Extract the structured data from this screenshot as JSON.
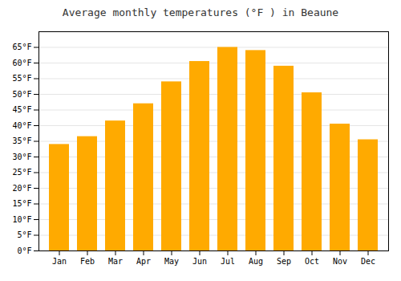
{
  "chart_data": {
    "type": "bar",
    "title": "Average monthly temperatures (°F ) in Beaune",
    "categories": [
      "Jan",
      "Feb",
      "Mar",
      "Apr",
      "May",
      "Jun",
      "Jul",
      "Aug",
      "Sep",
      "Oct",
      "Nov",
      "Dec"
    ],
    "values": [
      34,
      36.5,
      41.5,
      47,
      54,
      60.5,
      65,
      64,
      59,
      50.5,
      40.5,
      35.5
    ],
    "color": "#FFAA00",
    "ylim": [
      0,
      70
    ],
    "yticks": [
      {
        "value": 0,
        "label": "0°F"
      },
      {
        "value": 5,
        "label": "5°F"
      },
      {
        "value": 10,
        "label": "10°F"
      },
      {
        "value": 15,
        "label": "15°F"
      },
      {
        "value": 20,
        "label": "20°F"
      },
      {
        "value": 25,
        "label": "25°F"
      },
      {
        "value": 30,
        "label": "30°F"
      },
      {
        "value": 35,
        "label": "35°F"
      },
      {
        "value": 40,
        "label": "40°F"
      },
      {
        "value": 45,
        "label": "45°F"
      },
      {
        "value": 50,
        "label": "50°F"
      },
      {
        "value": 55,
        "label": "55°F"
      },
      {
        "value": 60,
        "label": "60°F"
      },
      {
        "value": 65,
        "label": "65°F"
      }
    ],
    "grid": true
  }
}
